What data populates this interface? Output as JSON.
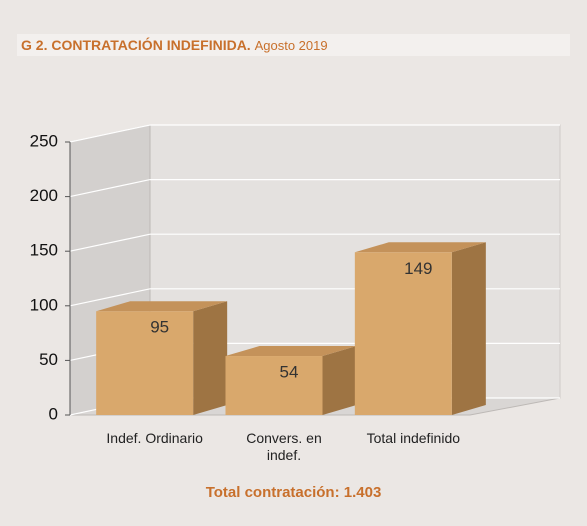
{
  "chart_data": {
    "type": "bar3d",
    "title": "G 2. CONTRATACIÓN INDEFINIDA.",
    "subtitle": "Agosto 2019",
    "annotation": "Total contratación: 1.403",
    "categories": [
      "Indef. Ordinario",
      "Convers. en indef.",
      "Total indefinido"
    ],
    "values": [
      95,
      54,
      149
    ],
    "color": "#d9a86c",
    "ylim": [
      0,
      250
    ],
    "yticks": [
      0,
      50,
      100,
      150,
      200,
      250
    ],
    "grid": true
  }
}
